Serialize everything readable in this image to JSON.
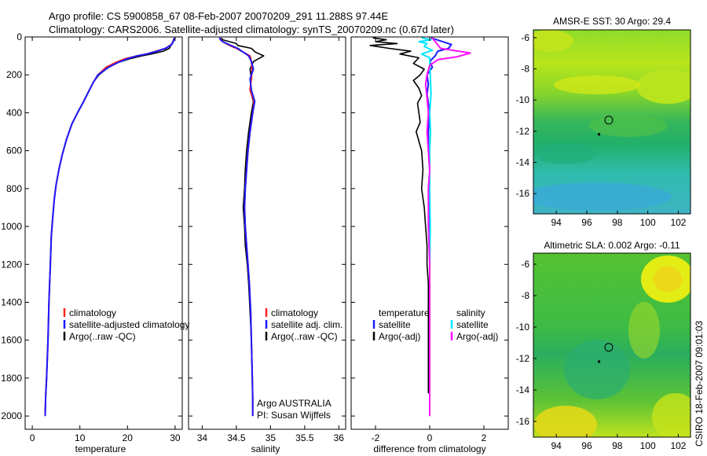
{
  "title_line1": "Argo profile: CS 5900858_67 08-Feb-2007 20070209_291 11.288S 97.44E",
  "title_line2": "Climatology: CARS2006. Satellite-adjusted climatology: synTS_20070209.nc (0.67d later)",
  "side_label": "CSIRO 18-Feb-2007 09:01:03",
  "colors": {
    "climatology": "#ff2020",
    "satellite": "#1a1aff",
    "argo": "#000000",
    "sal_satellite": "#00e5ff",
    "sal_argo": "#ff10ff"
  },
  "chart_data": [
    {
      "type": "line",
      "xlabel": "temperature",
      "xlim": [
        -1.5,
        31.5
      ],
      "ylim": [
        0,
        2070
      ],
      "y_reversed": true,
      "xticks": [
        0,
        10,
        20,
        30
      ],
      "yticks": [
        0,
        200,
        400,
        600,
        800,
        1000,
        1200,
        1400,
        1600,
        1800,
        2000
      ],
      "legend": [
        "climatology",
        "satellite-adjusted climatology",
        "Argo(..raw -QC)"
      ],
      "series": [
        {
          "name": "Argo(..raw -QC)",
          "color": "#000000",
          "x": [
            29.8,
            29.6,
            29.2,
            28.8,
            27.5,
            25.0,
            23.0,
            20.5,
            18.0,
            16.0,
            14.0,
            12.8,
            12.0,
            10.8,
            9.5,
            8.3,
            7.2,
            6.3,
            5.6,
            5.0,
            4.6,
            4.3,
            4.0,
            3.8,
            3.5,
            3.3,
            3.0,
            2.8,
            2.7
          ],
          "y": [
            5,
            20,
            40,
            60,
            75,
            90,
            100,
            115,
            135,
            160,
            200,
            240,
            280,
            340,
            400,
            460,
            540,
            620,
            700,
            780,
            860,
            950,
            1050,
            1200,
            1400,
            1600,
            1800,
            1900,
            2000
          ]
        },
        {
          "name": "climatology",
          "color": "#ff2020",
          "x": [
            30.0,
            29.7,
            29.2,
            28.0,
            26.0,
            24.0,
            22.0,
            19.5,
            17.5,
            15.5,
            13.8,
            12.8,
            12.0,
            10.8,
            9.5,
            8.3,
            7.2,
            6.3,
            5.6,
            5.0,
            4.6,
            4.3,
            4.0,
            3.8,
            3.5,
            3.3,
            3.0,
            2.8,
            2.7
          ],
          "y": [
            5,
            20,
            40,
            60,
            75,
            90,
            100,
            115,
            135,
            160,
            200,
            240,
            280,
            340,
            400,
            460,
            540,
            620,
            700,
            780,
            860,
            950,
            1050,
            1200,
            1400,
            1600,
            1800,
            1900,
            2000
          ]
        },
        {
          "name": "satellite-adjusted climatology",
          "color": "#1a1aff",
          "x": [
            29.9,
            29.7,
            29.3,
            28.0,
            26.2,
            24.0,
            22.0,
            20.0,
            18.0,
            16.0,
            13.8,
            12.8,
            12.0,
            10.8,
            9.5,
            8.3,
            7.2,
            6.3,
            5.6,
            5.0,
            4.6,
            4.3,
            4.0,
            3.8,
            3.5,
            3.3,
            3.0,
            2.8,
            2.7
          ],
          "y": [
            5,
            20,
            40,
            60,
            75,
            90,
            100,
            115,
            135,
            160,
            200,
            240,
            280,
            340,
            400,
            460,
            540,
            620,
            700,
            780,
            860,
            950,
            1050,
            1200,
            1400,
            1600,
            1800,
            1900,
            2000
          ]
        }
      ]
    },
    {
      "type": "line",
      "xlabel": "salinity",
      "xlim": [
        33.8,
        36.1
      ],
      "ylim": [
        0,
        2070
      ],
      "y_reversed": true,
      "xticks": [
        34,
        34.5,
        35,
        35.5,
        36
      ],
      "legend": [
        "climatology",
        "satellite adj. clim.",
        "Argo(..raw -QC)"
      ],
      "annotation": [
        "Argo AUSTRALIA",
        "PI: Susan Wijffels"
      ],
      "series": [
        {
          "name": "Argo(..raw -QC)",
          "color": "#000000",
          "x": [
            34.28,
            34.3,
            34.4,
            34.5,
            34.52,
            34.72,
            34.78,
            34.9,
            34.75,
            34.7,
            34.72,
            34.7,
            34.75,
            34.72,
            34.68,
            34.65,
            34.63,
            34.62,
            34.6,
            34.62,
            34.63,
            34.66,
            34.68,
            34.7,
            34.72,
            34.73,
            34.74,
            34.74
          ],
          "y": [
            5,
            15,
            25,
            35,
            45,
            60,
            80,
            100,
            130,
            170,
            220,
            280,
            340,
            400,
            500,
            600,
            700,
            800,
            900,
            1000,
            1100,
            1200,
            1300,
            1450,
            1600,
            1750,
            1900,
            2000
          ]
        },
        {
          "name": "climatology",
          "color": "#ff2020",
          "x": [
            34.25,
            34.28,
            34.3,
            34.35,
            34.4,
            34.5,
            34.6,
            34.7,
            34.72,
            34.73,
            34.72,
            34.7,
            34.76,
            34.74,
            34.7,
            34.67,
            34.65,
            34.63,
            34.62,
            34.63,
            34.65,
            34.67,
            34.69,
            34.71,
            34.72,
            34.73,
            34.74,
            34.74
          ],
          "y": [
            5,
            15,
            25,
            35,
            45,
            60,
            80,
            100,
            130,
            170,
            220,
            280,
            340,
            400,
            500,
            600,
            700,
            800,
            900,
            1000,
            1100,
            1200,
            1300,
            1450,
            1600,
            1750,
            1900,
            2000
          ]
        },
        {
          "name": "satellite adj. clim.",
          "color": "#1a1aff",
          "x": [
            34.25,
            34.27,
            34.3,
            34.36,
            34.42,
            34.52,
            34.6,
            34.68,
            34.72,
            34.75,
            34.7,
            34.72,
            34.77,
            34.74,
            34.7,
            34.67,
            34.65,
            34.63,
            34.62,
            34.63,
            34.65,
            34.67,
            34.69,
            34.71,
            34.72,
            34.73,
            34.74,
            34.74
          ],
          "y": [
            5,
            15,
            25,
            35,
            45,
            60,
            80,
            100,
            130,
            170,
            220,
            280,
            340,
            400,
            500,
            600,
            700,
            800,
            900,
            1000,
            1100,
            1200,
            1300,
            1450,
            1600,
            1750,
            1900,
            2000
          ]
        }
      ]
    },
    {
      "type": "line",
      "xlabel": "difference from climatology",
      "xlim": [
        -2.9,
        2.9
      ],
      "ylim": [
        0,
        2070
      ],
      "y_reversed": true,
      "xticks": [
        -2,
        0,
        2
      ],
      "legend_groups": [
        {
          "title": "temperature",
          "entries": [
            "satellite",
            "Argo(-adj)"
          ]
        },
        {
          "title": "salinity",
          "entries": [
            "satellite",
            "Argo(-adj)"
          ]
        }
      ],
      "series": [
        {
          "name": "temperature Argo(-adj)",
          "color": "#000000",
          "x": [
            -2.1,
            -1.6,
            -2.0,
            -1.2,
            -2.2,
            -1.5,
            -0.7,
            -1.1,
            -0.4,
            -0.6,
            -0.2,
            -0.35,
            -0.6,
            -0.4,
            -0.3,
            -0.45,
            -0.4,
            -0.35,
            -0.5,
            -0.3,
            -0.25,
            -0.3,
            -0.2,
            -0.15,
            -0.1,
            -0.1,
            -0.05,
            -0.05,
            -0.05,
            -0.05,
            -0.05,
            -0.05
          ],
          "y": [
            5,
            15,
            25,
            35,
            45,
            60,
            75,
            90,
            110,
            140,
            170,
            200,
            230,
            270,
            310,
            350,
            400,
            450,
            500,
            600,
            700,
            800,
            900,
            1000,
            1100,
            1200,
            1300,
            1450,
            1600,
            1750,
            1850,
            1880
          ]
        },
        {
          "name": "temperature satellite",
          "color": "#1a1aff",
          "x": [
            0.05,
            0.8,
            0.7,
            0.3,
            0.2,
            0.0,
            0.1,
            -0.1,
            -0.05,
            -0.1,
            0.0,
            -0.05,
            -0.05,
            0.0,
            0.0,
            0.0,
            0.0,
            0.0,
            0.0,
            0.0,
            0.0,
            0.0
          ],
          "y": [
            5,
            40,
            60,
            75,
            100,
            130,
            160,
            200,
            250,
            300,
            400,
            500,
            600,
            700,
            800,
            1000,
            1200,
            1400,
            1600,
            1800,
            1950,
            2000
          ]
        },
        {
          "name": "salinity satellite",
          "color": "#00e5ff",
          "x": [
            -0.3,
            0.05,
            -0.4,
            -0.1,
            -0.2,
            0.1,
            -0.3,
            0.0,
            0.0,
            0.02,
            0.05,
            0.0,
            0.03,
            0.0,
            0.0,
            0.02,
            0.0,
            0.0,
            0.0,
            0.0,
            0.0
          ],
          "y": [
            5,
            15,
            25,
            35,
            50,
            70,
            90,
            110,
            150,
            200,
            300,
            400,
            500,
            600,
            800,
            1000,
            1200,
            1400,
            1600,
            1800,
            2000
          ]
        },
        {
          "name": "salinity Argo(-adj)",
          "color": "#ff10ff",
          "x": [
            0.1,
            0.4,
            1.5,
            1.0,
            0.3,
            0.0,
            -0.1,
            -0.15,
            -0.1,
            -0.05,
            -0.1,
            -0.05,
            0.0,
            -0.05,
            -0.05,
            -0.05,
            0.0,
            0.0,
            0.0,
            0.0,
            0.0
          ],
          "y": [
            5,
            60,
            85,
            105,
            120,
            150,
            200,
            250,
            320,
            400,
            500,
            600,
            700,
            800,
            900,
            1000,
            1200,
            1400,
            1600,
            1800,
            2000
          ]
        }
      ]
    },
    {
      "type": "heatmap",
      "title": "AMSR-E SST: 30 Argo: 29.4",
      "xlim": [
        92.5,
        102.8
      ],
      "ylim": [
        -17.3,
        -5.5
      ],
      "xticks": [
        94,
        96,
        98,
        100,
        102
      ],
      "yticks": [
        -6,
        -8,
        -10,
        -12,
        -14,
        -16
      ],
      "float_position": {
        "lon": 97.44,
        "lat": -11.288
      },
      "previous_position": {
        "lon": 96.8,
        "lat": -12.2
      }
    },
    {
      "type": "heatmap",
      "title": "Altimetric SLA: 0.002 Argo: -0.11",
      "xlim": [
        92.5,
        102.8
      ],
      "ylim": [
        -17.0,
        -5.3
      ],
      "xticks": [
        94,
        96,
        98,
        100,
        102
      ],
      "yticks": [
        -6,
        -8,
        -10,
        -12,
        -14,
        -16
      ],
      "float_position": {
        "lon": 97.44,
        "lat": -11.288
      },
      "previous_position": {
        "lon": 96.8,
        "lat": -12.2
      }
    }
  ]
}
